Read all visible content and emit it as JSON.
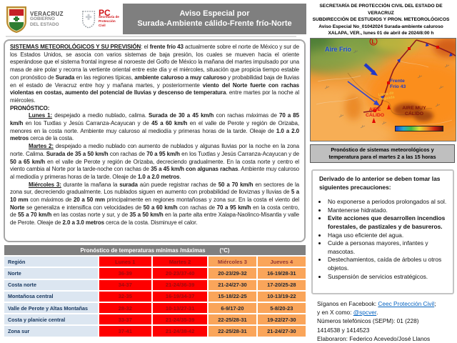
{
  "header": {
    "banner": {
      "line1": "Aviso Especial por",
      "line2": "Surada-Ambiente cálido-Frente frío-Norte"
    },
    "org_lines": [
      "SECRETARÍA DE PROTECCIÓN CIVIL DEL ESTADO DE VERACRUZ",
      "SUBDIRECCIÓN DE ESTUDIOS Y PRON. METEOROLÓGICOS",
      "Aviso Especial No_01042024 Surada-ambiente caluroso",
      "XALAPA, VER., lunes 01 de abril de 2024/8:00 h"
    ],
    "logo_veracruz": {
      "title": "VERACRUZ",
      "sub1": "GOBIERNO",
      "sub2": "DEL ESTADO"
    },
    "logo_pc": {
      "title": "PC",
      "sub1": "Secretaría de",
      "sub2": "Protección Civil"
    }
  },
  "forecast": {
    "sistemas": [
      {
        "t": "SISTEMAS METEOROLÓGICOS Y SU PREVISIÓN",
        "b": true,
        "u": true
      },
      {
        "t": ": el "
      },
      {
        "t": "frente frío 43",
        "b": true
      },
      {
        "t": " actualmente sobre el norte de México y sur de los Estados Unidos, se asocia con varios sistemas de baja presión, los cuales se mueven hacia el oriente esperándose que el sistema frontal ingrese al noroeste del Golfo de México la mañana del martes impulsado por una masa de aire polar y recorra la vertiente oriental entre este día y el miércoles, situación que propicia tiempo estable con pronóstico de "
      },
      {
        "t": "Surada",
        "b": true
      },
      {
        "t": " en las regiones típicas, "
      },
      {
        "t": "ambiente caluroso a muy caluroso",
        "b": true
      },
      {
        "t": " y probabilidad baja de lluvias en el estado de Veracruz entre hoy y mañana martes, y posteriormente "
      },
      {
        "t": "viento del Norte fuerte con rachas violentas en costas, aumento del potencial de lluvias y descenso de temperatura",
        "b": true
      },
      {
        "t": ". entre martes por la noche al miércoles."
      }
    ],
    "pronostico_label": "PRONÓSTICO:",
    "lunes": [
      {
        "t": "Lunes 1:",
        "b": true,
        "u": true
      },
      {
        "t": " despejado a medio nublado, calima. "
      },
      {
        "t": "Surada de 30 a 45 km/h",
        "b": true
      },
      {
        "t": " con rachas máximas de "
      },
      {
        "t": "70 a 85 km/h",
        "b": true
      },
      {
        "t": " en los Tuxtlas y Jesús Carranza-Acayucan y de "
      },
      {
        "t": "45 a 60 km/h",
        "b": true
      },
      {
        "t": " en el valle de Perote y región de Orizaba, menores en la costa norte. Ambiente muy caluroso al mediodía y primeras horas de la tarde. Oleaje de "
      },
      {
        "t": "1.0 a 2.0 metros",
        "b": true
      },
      {
        "t": " cerca de la costa."
      }
    ],
    "martes": [
      {
        "t": "Martes 2:",
        "b": true,
        "u": true
      },
      {
        "t": " despejado a medio nublado con aumento de nublados y algunas lluvias por la noche en la zona norte. Calima. "
      },
      {
        "t": "Surada de 35 a 50 km/h",
        "b": true
      },
      {
        "t": " con rachas de "
      },
      {
        "t": "70 a 95 km/h",
        "b": true
      },
      {
        "t": " en los Tuxtlas y Jesús Carranza-Acayucan y de "
      },
      {
        "t": "50 a 65 km/h",
        "b": true
      },
      {
        "t": " en el valle de Perote y región de Orizaba, decreciendo gradualmente. En la costa norte y centro el viento cambia al Norte por la tarde-noche con rachas de "
      },
      {
        "t": "35 a 45 km/h con algunas rachas",
        "b": true
      },
      {
        "t": ". Ambiente muy caluroso al mediodía y primeras horas de la tarde. Oleaje de "
      },
      {
        "t": "1.0 a 2.0 metros",
        "b": true
      },
      {
        "t": "."
      }
    ],
    "miercoles": [
      {
        "t": "Miércoles 3:",
        "b": true,
        "u": true
      },
      {
        "t": " durante la mañana la "
      },
      {
        "t": "surada",
        "b": true
      },
      {
        "t": " aún puede registrar rachas de "
      },
      {
        "t": "50 a 70 km/h",
        "b": true
      },
      {
        "t": " en sectores de la zona sur, decreciendo gradualmente. Los nublados siguen en aumento con probabilidad de lloviznas y lluvias de "
      },
      {
        "t": "5 a 10 mm",
        "b": true
      },
      {
        "t": " con máximos de "
      },
      {
        "t": "20 a 50 mm",
        "b": true
      },
      {
        "t": " principalmente en regiones montañosas y zona sur. En la costa el viento del "
      },
      {
        "t": "Norte",
        "b": true
      },
      {
        "t": " se generaliza e intensifica con velocidades de "
      },
      {
        "t": "50 a 60 km/h",
        "b": true
      },
      {
        "t": " con rachas de "
      },
      {
        "t": "70 a 95 km/h",
        "b": true
      },
      {
        "t": " en la costa centro, de "
      },
      {
        "t": "55 a 70 km/h",
        "b": true
      },
      {
        "t": " en las costas norte y sur, y de "
      },
      {
        "t": "35 a 50 km/h",
        "b": true
      },
      {
        "t": " en la parte alta entre Xalapa-Naolinco-Misantla y valle de Perote. Oleaje de "
      },
      {
        "t": "2.0 a 3.0 metros",
        "b": true
      },
      {
        "t": " cerca de la costa. Disminuye el calor."
      }
    ]
  },
  "map": {
    "labels": {
      "low_symbol": "L",
      "aire_frio": "Aire Frío",
      "frente_frio": "Frente Frío 43",
      "linea_vaguada": "Línea de Vaguada",
      "aire_calido": "AIRE CÁLIDO",
      "aire_muy_calido": "AIRE MUY CÁLIDO"
    },
    "caption_line1": "Pronóstico de sistemas meteorológicos y",
    "caption_line2": "temperatura para el martes 2 a las 15 horas"
  },
  "precautions": {
    "title": "Derivado de lo anterior se deben tomar las siguientes precauciones:",
    "items": [
      {
        "t": "No exponerse a periodos prolongados al sol.",
        "b": false
      },
      {
        "t": "Mantenerse hidratado.",
        "b": false
      },
      {
        "t": "Evite acciones que desarrollen incendios forestales, de pastizales y de basureros.",
        "b": true
      },
      {
        "t": "Haga uso eficiente del agua.",
        "b": false
      },
      {
        "t": "Cuide a personas mayores, infantes y mascotas.",
        "b": false
      },
      {
        "t": "Destechamientos, caída de árboles u otros objetos.",
        "b": false
      },
      {
        "t": "Suspensión de servicios estratégicos.",
        "b": false
      }
    ]
  },
  "table": {
    "title": "Pronóstico de temperaturas  mínimas /máximas",
    "unit": "(°C)",
    "headers": [
      "Región",
      "Lunes 1",
      "Martes 2",
      "Miércoles 3",
      "Jueves 4"
    ],
    "rows": [
      [
        "Norte",
        "36-39",
        "20-23/37-40",
        "20-23/29-32",
        "16-19/28-31"
      ],
      [
        "Costa norte",
        "34-37",
        "21-24/36-39",
        "21-24/27-30",
        "17-20/25-28"
      ],
      [
        "Montañosa central",
        "32-35",
        "16-19/34-37",
        "15-18/22-25",
        "10-13/19-22"
      ],
      [
        "Valle de Perote y Altas Montañas",
        "28-32",
        "10-13/27-31",
        "6-9/17-20",
        "5-8/20-23"
      ],
      [
        "Costa y planicie central",
        "33-37",
        "21-24/35-39",
        "22-25/28-31",
        "19-22/27-30"
      ],
      [
        "Zona sur",
        "37-41",
        "21-24/38-42",
        "22-25/28-31",
        "21-24/27-30"
      ]
    ]
  },
  "footer": {
    "line1": [
      {
        "t": "Síganos en Facebook: "
      },
      {
        "t": "Ceec Protección Civil",
        "link": true
      },
      {
        "t": ";"
      }
    ],
    "line2": [
      {
        "t": "y en X como: "
      },
      {
        "t": "@spcver",
        "link": true
      },
      {
        "t": "."
      }
    ],
    "line3": "Números telefónicos (SEPM):  01 (228)",
    "line4": "1414538  y 1414523",
    "line5": "Elaboraron: Federico Acevedo/José Llanos"
  },
  "colors": {
    "banner_gray": "#7F7F7F",
    "cell_red": "#FE0000",
    "cell_red_text": "#9E0B0F",
    "cell_orange": "#FAA55A",
    "orange_header_text": "#943634",
    "region_cell_blue": "#DCE6F1",
    "region_text_navy": "#17365D",
    "caption_gray": "#BFBFBF",
    "link_blue": "#0563C1",
    "map_cold_green": "#4F7F38",
    "map_warm_orange": "#F49A38",
    "map_hot_red": "#A84410"
  }
}
